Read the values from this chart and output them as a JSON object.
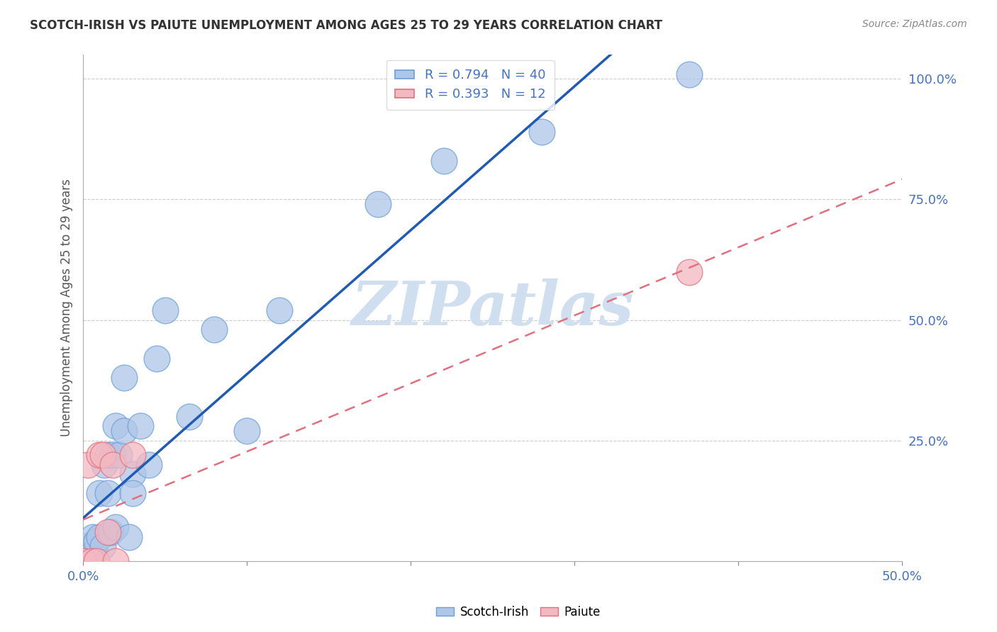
{
  "title": "SCOTCH-IRISH VS PAIUTE UNEMPLOYMENT AMONG AGES 25 TO 29 YEARS CORRELATION CHART",
  "source": "Source: ZipAtlas.com",
  "ylabel": "Unemployment Among Ages 25 to 29 years",
  "xlim": [
    0.0,
    0.5
  ],
  "ylim": [
    0.0,
    1.05
  ],
  "background_color": "#ffffff",
  "plot_bg_color": "#ffffff",
  "grid_color": "#cccccc",
  "title_color": "#333333",
  "axis_color": "#4472c4",
  "watermark": "ZIPatlas",
  "watermark_color": "#d0dff0",
  "scotch_irish_color": "#aec6e8",
  "scotch_irish_edge": "#6a9fd8",
  "paiute_color": "#f4b8c1",
  "paiute_edge": "#e07080",
  "scotch_irish_line_color": "#1f5ab5",
  "paiute_line_color": "#e07080",
  "scotch_irish_x": [
    0.0,
    0.0,
    0.0,
    0.0,
    0.002,
    0.003,
    0.004,
    0.005,
    0.006,
    0.007,
    0.008,
    0.008,
    0.01,
    0.01,
    0.012,
    0.013,
    0.015,
    0.015,
    0.017,
    0.018,
    0.02,
    0.02,
    0.022,
    0.025,
    0.025,
    0.028,
    0.03,
    0.03,
    0.035,
    0.04,
    0.045,
    0.05,
    0.065,
    0.08,
    0.1,
    0.12,
    0.18,
    0.22,
    0.28,
    0.37
  ],
  "scotch_irish_y": [
    0.0,
    0.01,
    0.02,
    0.03,
    0.02,
    0.0,
    0.01,
    0.03,
    0.05,
    0.02,
    0.0,
    0.04,
    0.05,
    0.14,
    0.03,
    0.2,
    0.22,
    0.14,
    0.06,
    0.22,
    0.28,
    0.07,
    0.22,
    0.38,
    0.27,
    0.05,
    0.18,
    0.14,
    0.28,
    0.2,
    0.42,
    0.52,
    0.3,
    0.48,
    0.27,
    0.52,
    0.74,
    0.83,
    0.89,
    1.01
  ],
  "paiute_x": [
    0.0,
    0.0,
    0.003,
    0.005,
    0.008,
    0.01,
    0.012,
    0.015,
    0.018,
    0.02,
    0.03,
    0.37
  ],
  "paiute_y": [
    0.0,
    0.0,
    0.2,
    0.0,
    0.0,
    0.22,
    0.22,
    0.06,
    0.2,
    0.0,
    0.22,
    0.6
  ]
}
